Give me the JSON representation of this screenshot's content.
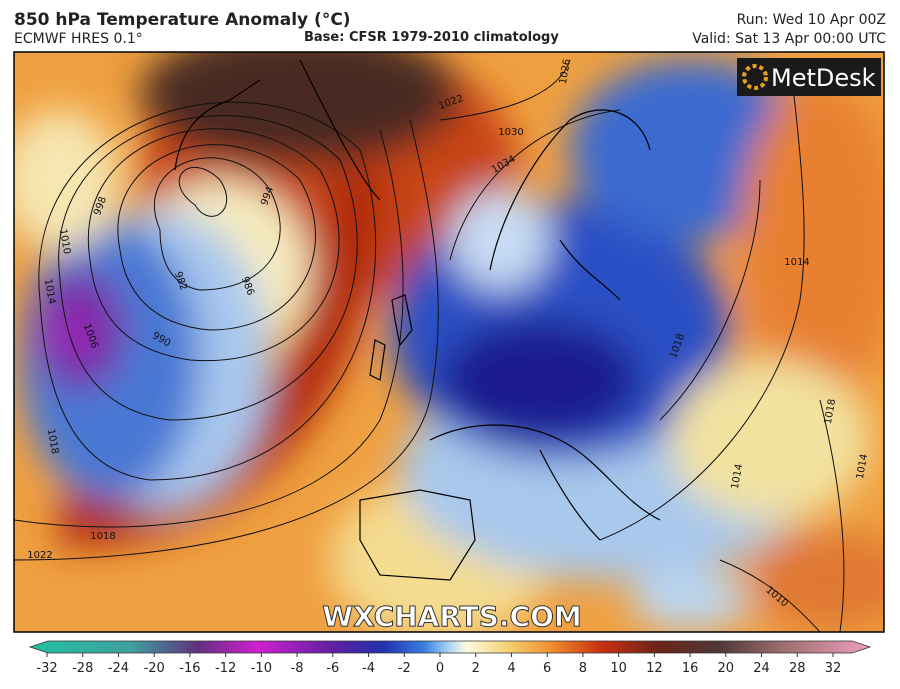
{
  "header": {
    "title": "850 hPa Temperature Anomaly (°C)",
    "model": "ECMWF HRES 0.1°",
    "base": "Base: CFSR 1979-2010 climatology",
    "run": "Run: Wed 10 Apr 00Z",
    "valid": "Valid: Sat 13 Apr 00:00 UTC"
  },
  "logo": "MetDesk",
  "watermark": "WXCHARTS.COM",
  "isobar_labels": [
    "1026",
    "1030",
    "1034",
    "1022",
    "998",
    "994",
    "982",
    "986",
    "990",
    "1006",
    "1010",
    "1014",
    "1018",
    "1018",
    "1022",
    "1014",
    "1018",
    "1018",
    "1014",
    "1014",
    "1010"
  ],
  "colorbar": {
    "ticks": [
      -32,
      -28,
      -24,
      -20,
      -16,
      -12,
      -10,
      -8,
      -6,
      -4,
      -2,
      0,
      2,
      4,
      6,
      8,
      10,
      12,
      16,
      20,
      24,
      28,
      32
    ]
  }
}
